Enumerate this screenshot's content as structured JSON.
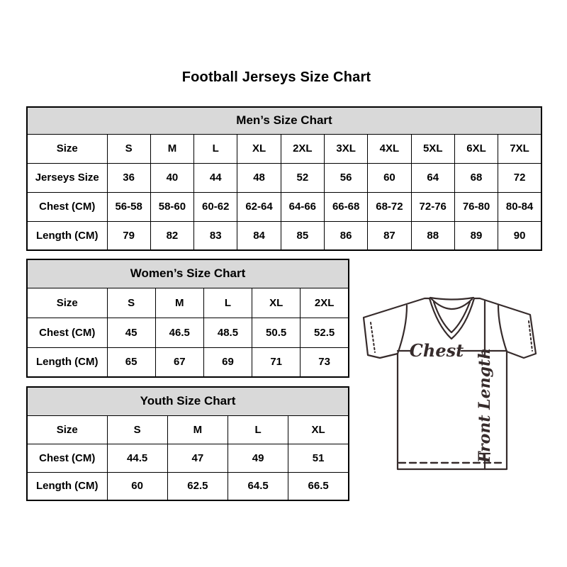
{
  "page": {
    "title": "Football Jerseys Size Chart"
  },
  "tables": [
    {
      "id": "mens",
      "title": "Men’s Size Chart",
      "rows": [
        [
          "Size",
          "S",
          "M",
          "L",
          "XL",
          "2XL",
          "3XL",
          "4XL",
          "5XL",
          "6XL",
          "7XL"
        ],
        [
          "Jerseys Size",
          "36",
          "40",
          "44",
          "48",
          "52",
          "56",
          "60",
          "64",
          "68",
          "72"
        ],
        [
          "Chest (CM)",
          "56-58",
          "58-60",
          "60-62",
          "62-64",
          "64-66",
          "66-68",
          "68-72",
          "72-76",
          "76-80",
          "80-84"
        ],
        [
          "Length (CM)",
          "79",
          "82",
          "83",
          "84",
          "85",
          "86",
          "87",
          "88",
          "89",
          "90"
        ]
      ]
    },
    {
      "id": "womens",
      "title": "Women’s Size Chart",
      "rows": [
        [
          "Size",
          "S",
          "M",
          "L",
          "XL",
          "2XL"
        ],
        [
          "Chest (CM)",
          "45",
          "46.5",
          "48.5",
          "50.5",
          "52.5"
        ],
        [
          "Length (CM)",
          "65",
          "67",
          "69",
          "71",
          "73"
        ]
      ]
    },
    {
      "id": "youth",
      "title": "Youth Size Chart",
      "rows": [
        [
          "Size",
          "S",
          "M",
          "L",
          "XL"
        ],
        [
          "Chest (CM)",
          "44.5",
          "47",
          "49",
          "51"
        ],
        [
          "Length (CM)",
          "60",
          "62.5",
          "64.5",
          "66.5"
        ]
      ]
    }
  ],
  "diagram": {
    "chest_label": "Chest",
    "front_length_label": "Front Length"
  },
  "colors": {
    "table_header_bg": "#d9d9d9",
    "table_border": "#000000",
    "text": "#000000",
    "jersey_line": "#362b2b"
  }
}
